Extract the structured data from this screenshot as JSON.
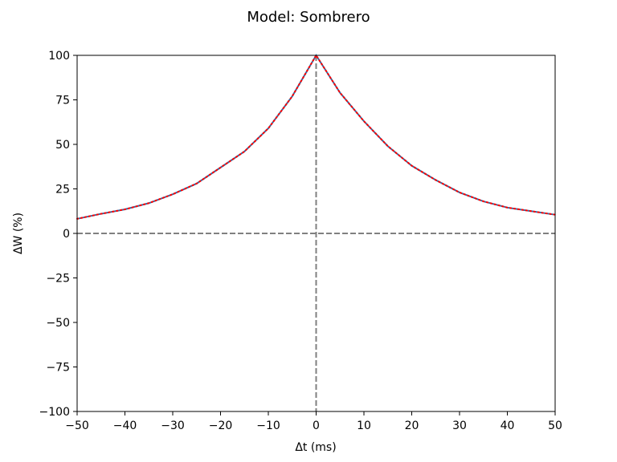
{
  "chart_data": {
    "type": "line",
    "title": "Model: Sombrero",
    "xlabel": "Δt (ms)",
    "ylabel": "ΔW (%)",
    "xlim": [
      -50,
      50
    ],
    "ylim": [
      -100,
      100
    ],
    "xticks": [
      -50,
      -40,
      -30,
      -20,
      -10,
      0,
      10,
      20,
      30,
      40,
      50
    ],
    "yticks": [
      -100,
      -75,
      -50,
      -25,
      0,
      25,
      50,
      75,
      100
    ],
    "xtick_labels": [
      "−50",
      "−40",
      "−30",
      "−20",
      "−10",
      "0",
      "10",
      "20",
      "30",
      "40",
      "50"
    ],
    "ytick_labels": [
      "−100",
      "−75",
      "−50",
      "−25",
      "0",
      "25",
      "50",
      "75",
      "100"
    ],
    "grid": false,
    "reference_lines": [
      {
        "orientation": "horizontal",
        "value": 0,
        "style": "dashed",
        "color": "#808080"
      },
      {
        "orientation": "vertical",
        "value": 0,
        "style": "dashed",
        "color": "#808080"
      }
    ],
    "series": [
      {
        "style": "solid",
        "color": "#1f77b4",
        "x": [
          -50,
          -45,
          -40,
          -35,
          -30,
          -25,
          -20,
          -15,
          -10,
          -5,
          0,
          5,
          10,
          15,
          20,
          25,
          30,
          35,
          40,
          45,
          50
        ],
        "y": [
          8.2,
          11,
          13.5,
          17,
          22,
          28,
          37,
          46,
          59,
          77,
          100,
          79,
          63,
          49,
          38,
          30,
          23,
          18,
          14.5,
          12.5,
          10.5
        ]
      },
      {
        "style": "dotted",
        "color": "#ff0000",
        "x": [
          -50,
          -45,
          -40,
          -35,
          -30,
          -25,
          -20,
          -15,
          -10,
          -5,
          0,
          5,
          10,
          15,
          20,
          25,
          30,
          35,
          40,
          45,
          50
        ],
        "y": [
          8.2,
          11,
          13.5,
          17,
          22,
          28,
          37,
          46,
          59,
          77,
          100,
          79,
          63,
          49,
          38,
          30,
          23,
          18,
          14.5,
          12.5,
          10.5
        ]
      }
    ]
  }
}
